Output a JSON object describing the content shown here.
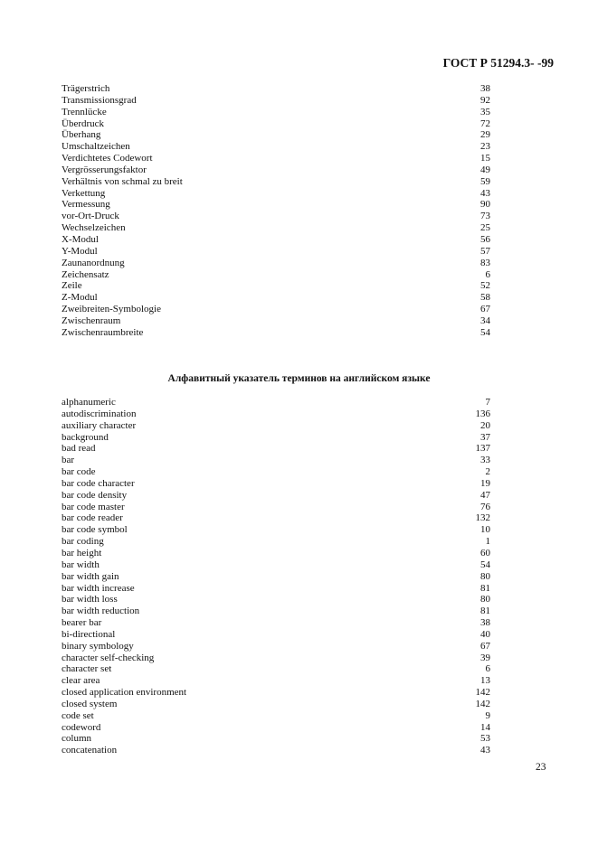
{
  "header": {
    "doc_code": "ГОСТ Р 51294.3- -99"
  },
  "german_index": [
    {
      "term": "Trägerstrich",
      "ref": "38"
    },
    {
      "term": "Transmissionsgrad",
      "ref": "92"
    },
    {
      "term": "Trennlücke",
      "ref": "35"
    },
    {
      "term": "Überdruck",
      "ref": "72"
    },
    {
      "term": "Überhang",
      "ref": "29"
    },
    {
      "term": "Umschaltzeichen",
      "ref": "23"
    },
    {
      "term": "Verdichtetes Codewort",
      "ref": "15"
    },
    {
      "term": "Vergrösserungsfaktor",
      "ref": "49"
    },
    {
      "term": "Verhältnis von schmal zu breit",
      "ref": "59"
    },
    {
      "term": "Verkettung",
      "ref": "43"
    },
    {
      "term": "Vermessung",
      "ref": "90"
    },
    {
      "term": "vor-Ort-Druck",
      "ref": "73"
    },
    {
      "term": "Wechselzeichen",
      "ref": "25"
    },
    {
      "term": "X-Modul",
      "ref": "56"
    },
    {
      "term": "Y-Modul",
      "ref": "57"
    },
    {
      "term": "Zaunanordnung",
      "ref": "83"
    },
    {
      "term": "Zeichensatz",
      "ref": "6"
    },
    {
      "term": "Zeile",
      "ref": "52"
    },
    {
      "term": "Z-Modul",
      "ref": "58"
    },
    {
      "term": "Zweibreiten-Symbologie",
      "ref": "67"
    },
    {
      "term": "Zwischenraum",
      "ref": "34"
    },
    {
      "term": "Zwischenraumbreite",
      "ref": "54"
    }
  ],
  "english_section_title": "Алфавитный указатель терминов на английском языке",
  "english_index": [
    {
      "term": "alphanumeric",
      "ref": "7"
    },
    {
      "term": "autodiscrimination",
      "ref": "136"
    },
    {
      "term": "auxiliary character",
      "ref": "20"
    },
    {
      "term": "background",
      "ref": "37"
    },
    {
      "term": "bad read",
      "ref": "137"
    },
    {
      "term": "bar",
      "ref": "33"
    },
    {
      "term": "bar code",
      "ref": "2"
    },
    {
      "term": "bar code character",
      "ref": "19"
    },
    {
      "term": "bar code density",
      "ref": "47"
    },
    {
      "term": "bar code master",
      "ref": "76"
    },
    {
      "term": "bar code reader",
      "ref": "132"
    },
    {
      "term": "bar code symbol",
      "ref": "10"
    },
    {
      "term": "bar coding",
      "ref": "1"
    },
    {
      "term": "bar height",
      "ref": "60"
    },
    {
      "term": "bar width",
      "ref": "54"
    },
    {
      "term": "bar width gain",
      "ref": "80"
    },
    {
      "term": "bar width increase",
      "ref": "81"
    },
    {
      "term": "bar width loss",
      "ref": "80"
    },
    {
      "term": "bar width reduction",
      "ref": "81"
    },
    {
      "term": "bearer bar",
      "ref": "38"
    },
    {
      "term": "bi-directional",
      "ref": "40"
    },
    {
      "term": "binary symbology",
      "ref": "67"
    },
    {
      "term": "character self-checking",
      "ref": "39"
    },
    {
      "term": "character set",
      "ref": "6"
    },
    {
      "term": "clear area",
      "ref": "13"
    },
    {
      "term": "closed application environment",
      "ref": "142"
    },
    {
      "term": "closed system",
      "ref": "142"
    },
    {
      "term": "code set",
      "ref": "9"
    },
    {
      "term": "codeword",
      "ref": "14"
    },
    {
      "term": "column",
      "ref": "53"
    },
    {
      "term": "concatenation",
      "ref": "43"
    }
  ],
  "page_number": "23"
}
